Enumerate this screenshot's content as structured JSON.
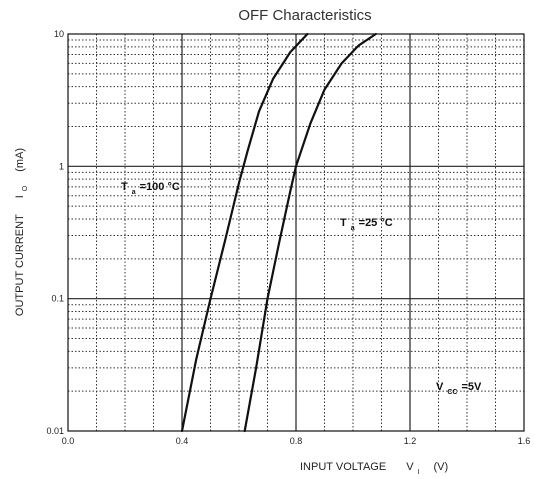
{
  "chart_data": {
    "type": "line",
    "title": "OFF Characteristics",
    "xlabel": {
      "main": "INPUT VOLTAGE",
      "symbol": "V",
      "subscript": "I",
      "unit": "(V)"
    },
    "ylabel": {
      "main": "OUTPUT CURRENT",
      "symbol": "I",
      "subscript": "O",
      "unit": "(mA)"
    },
    "x_scale": "linear",
    "y_scale": "log",
    "xlim": [
      0.0,
      1.6
    ],
    "ylim": [
      0.01,
      10
    ],
    "x_ticks": [
      "0.0",
      "0.4",
      "0.8",
      "1.2",
      "1.6"
    ],
    "y_ticks": [
      "0.01",
      "0.1",
      "1",
      "10"
    ],
    "grid": true,
    "series": [
      {
        "name": "Ta=100°C",
        "x": [
          0.4,
          0.45,
          0.5,
          0.55,
          0.6,
          0.63,
          0.67,
          0.72,
          0.78,
          0.84
        ],
        "y": [
          0.01,
          0.035,
          0.1,
          0.27,
          0.75,
          1.3,
          2.6,
          4.6,
          7.3,
          10
        ]
      },
      {
        "name": "Ta=25°C",
        "x": [
          0.62,
          0.66,
          0.7,
          0.74,
          0.78,
          0.8,
          0.85,
          0.9,
          0.96,
          1.02,
          1.08
        ],
        "y": [
          0.01,
          0.03,
          0.1,
          0.26,
          0.65,
          1.0,
          2.1,
          3.8,
          6.0,
          8.2,
          10
        ]
      }
    ],
    "annotations": [
      {
        "symbol": "T",
        "subscript": "a",
        "text": "=100 °C"
      },
      {
        "symbol": "T",
        "subscript": "a",
        "text": "=25 °C"
      },
      {
        "symbol": "V",
        "subscript": "CC",
        "text": "=5V"
      }
    ]
  }
}
